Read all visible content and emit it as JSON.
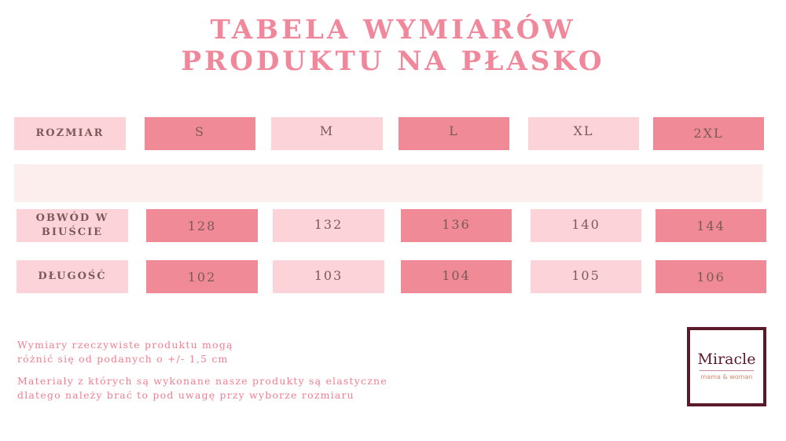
{
  "title": {
    "line1": "TABELA WYMIARÓW",
    "line2": "PRODUKTU NA PŁASKO"
  },
  "table": {
    "header_label": "ROZMIAR",
    "sizes": [
      "S",
      "M",
      "L",
      "XL",
      "2XL"
    ],
    "rows": [
      {
        "label": "OBWÓD W BIUŚCIE",
        "values": [
          "128",
          "132",
          "136",
          "140",
          "144"
        ]
      },
      {
        "label": "DŁUGOŚĆ",
        "values": [
          "102",
          "103",
          "104",
          "105",
          "106"
        ]
      }
    ]
  },
  "notes": [
    "Wymiary rzeczywiste produktu mogą różnić się od podanych o +/- 1,5 cm",
    "Materiały z których są wykonane nasze produkty są elastyczne dlatego należy brać to pod uwagę przy wyborze rozmiaru"
  ],
  "logo": {
    "name": "Miracle",
    "tagline": "mama & woman"
  },
  "colors": {
    "light": "#fdd3da",
    "dark": "#ef8a96",
    "band": "#fdeeee",
    "title": "#f0879a",
    "text": "#7a5a58",
    "logo_border": "#5a1a2a"
  }
}
